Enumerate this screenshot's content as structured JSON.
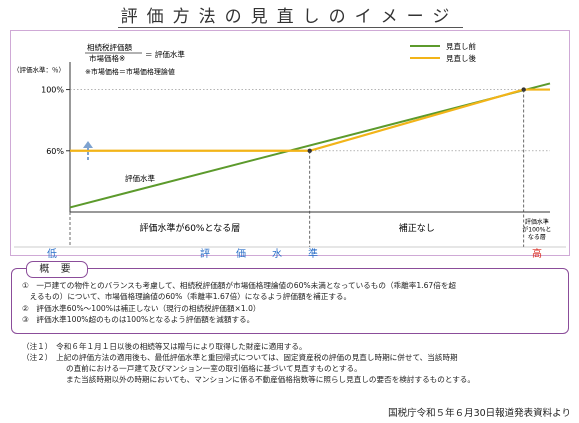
{
  "title": "評価方法の見直しのイメージ",
  "formula": {
    "numerator": "相続税評価額",
    "denominator": "市場価格※",
    "result": "＝ 評価水準",
    "note": "※市場価格＝市場価格理論値"
  },
  "chart_data": {
    "type": "line",
    "ylabel": "（評価水準：％）",
    "yticks": [
      {
        "label": "100%",
        "value": 100
      },
      {
        "label": "60%",
        "value": 60
      }
    ],
    "ylim": [
      20,
      118
    ],
    "x_axis": {
      "low_label": "低",
      "high_label": "高",
      "middle_label": "評　価　水　準"
    },
    "series": [
      {
        "name": "見直し前",
        "color": "#5c9a2c",
        "points": [
          [
            0,
            23
          ],
          [
            1,
            104
          ]
        ]
      },
      {
        "name": "見直し後",
        "color": "#f2b418",
        "points": [
          [
            0,
            60
          ],
          [
            0.4994,
            60
          ],
          [
            0.9452,
            100
          ],
          [
            1,
            100
          ]
        ]
      }
    ],
    "annotations": {
      "line_label": "評価水準",
      "regions": [
        {
          "label": "評価水準が60%となる層",
          "from": 0,
          "to": 0.4994
        },
        {
          "label": "補正なし",
          "from": 0.4994,
          "to": 0.9452
        },
        {
          "label": "評価水準\nが100%と\nなる層",
          "from": 0.9452,
          "to": 1
        }
      ]
    },
    "legend": "top-right"
  },
  "overview": {
    "heading": "概 要",
    "items": [
      "①　一戸建ての物件とのバランスも考慮して、相続税評価額が市場価格理論値の60%未満となっているもの（乖離率1.67倍を超",
      "　えるもの）について、市場価格理論値の60%（乖離率1.67倍）になるよう評価額を補正する。",
      "②　評価水準60%～100%は補正しない（現行の相続税評価額×1.0）",
      "③　評価水準100%超のものは100%となるよう評価額を減額する。"
    ]
  },
  "notes": [
    {
      "tag": "（注１）",
      "text": "　令和６年１月１日以後の相続等又は贈与により取得した財産に適用する。"
    },
    {
      "tag": "（注２）",
      "text": "　上記の評価方法の適用後も、最低評価水準と重回帰式については、固定資産税の評価の見直し時期に併せて、当該時期"
    },
    {
      "tag": "",
      "text": "の直前における一戸建て及びマンション一室の取引価格に基づいて見直すものとする。"
    },
    {
      "tag": "",
      "text": "また当該時期以外の時期においても、マンションに係る不動産価格指数等に照らし見直しの要否を検討するものとする。"
    }
  ],
  "source": "国税庁令和５年６月30日報道発表資料より"
}
